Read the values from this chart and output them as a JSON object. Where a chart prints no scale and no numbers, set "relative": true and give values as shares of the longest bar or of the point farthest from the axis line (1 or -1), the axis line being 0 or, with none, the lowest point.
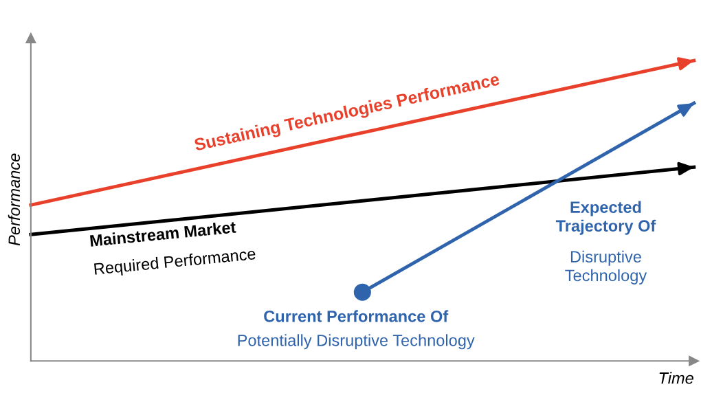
{
  "chart_data": {
    "type": "line",
    "relative": true,
    "xlabel": "Time",
    "ylabel": "Performance",
    "categories": [
      null,
      null,
      null
    ],
    "series": [
      {
        "color": "#e8402a",
        "values": [
          0.519,
          0.76,
          1.0
        ]
      },
      {
        "color": "#000000",
        "values": [
          0.421,
          0.533,
          0.645
        ]
      },
      {
        "color": "#2f64ad",
        "values": [
          null,
          0.229,
          0.858
        ],
        "marker": "circle"
      }
    ],
    "annotations": [
      "Sustaining Technologies Performance",
      "Mainstream Market",
      "Required Performance",
      "Current Performance Of",
      "Potentially Disruptive Technology",
      "Expected\nTrajectory Of",
      "Disruptive\nTechnology"
    ]
  }
}
